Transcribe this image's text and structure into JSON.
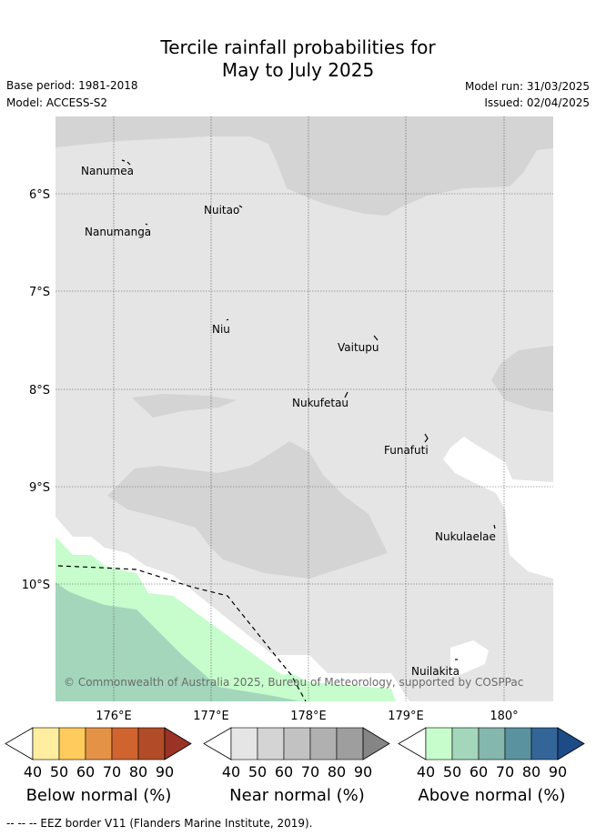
{
  "title_line1": "Tercile rainfall probabilities for",
  "title_line2": "May to July 2025",
  "base_period": "Base period: 1981-2018",
  "model": "Model: ACCESS-S2",
  "model_run": "Model run: 31/03/2025",
  "issued": "Issued: 02/04/2025",
  "copyright": "© Commonwealth of Australia 2025, Bureau of Meteorology, supported by COSPPac",
  "footer": "--  --  -- EEZ border V11 (Flanders Marine Institute, 2019).",
  "lat_labels": [
    "6°S",
    "7°S",
    "8°S",
    "9°S",
    "10°S"
  ],
  "lon_labels": [
    "176°E",
    "177°E",
    "178°E",
    "179°E",
    "180°"
  ],
  "places": [
    "Nanumea",
    "Nuitao",
    "Nanumanga",
    "Niu",
    "Vaitupu",
    "Nukufetau",
    "Funafuti",
    "Nukulaelae",
    "Nuilakita"
  ],
  "colorbars": [
    {
      "label": "Below normal (%)",
      "ticks": [
        "40",
        "50",
        "60",
        "70",
        "80",
        "90"
      ],
      "colors": [
        "#ffeda0",
        "#fecb5c",
        "#e49346",
        "#d0642e",
        "#b24b28",
        "#9a3225"
      ]
    },
    {
      "label": "Near normal (%)",
      "ticks": [
        "40",
        "50",
        "60",
        "70",
        "80",
        "90"
      ],
      "colors": [
        "#e5e5e5",
        "#d4d4d4",
        "#c2c2c2",
        "#b0b0b0",
        "#9e9e9e",
        "#858585"
      ]
    },
    {
      "label": "Above normal (%)",
      "ticks": [
        "40",
        "50",
        "60",
        "70",
        "80",
        "90"
      ],
      "colors": [
        "#c7fdcc",
        "#a3d6bb",
        "#84b7ae",
        "#5a92a0",
        "#336599",
        "#1d4b88"
      ]
    }
  ],
  "legend_colors": {
    "near_40": "#e5e5e5",
    "near_50": "#d4d4d4",
    "above_40": "#c7fdcc",
    "above_50": "#a3d6bb"
  }
}
